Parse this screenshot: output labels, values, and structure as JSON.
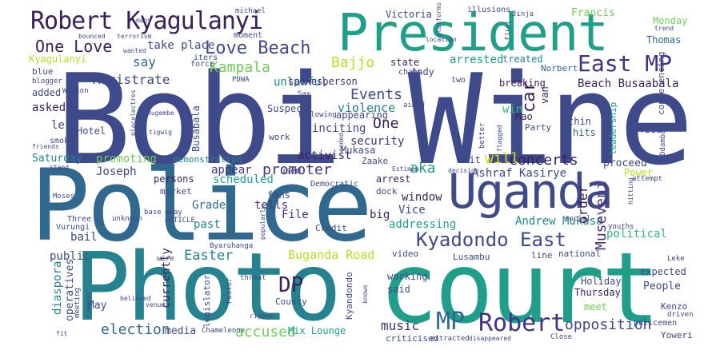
{
  "colors": {
    "background": "#ffffff",
    "palette": [
      "#3b1f59",
      "#44327e",
      "#3e4a89",
      "#31688e",
      "#26828e",
      "#1f9e89",
      "#35b779",
      "#6ece58",
      "#b5de2b",
      "#d8e219"
    ]
  },
  "words": [
    {
      "text": "Bobi Wine",
      "rank": 1
    },
    {
      "text": "Police",
      "rank": 2
    },
    {
      "text": "Photo",
      "rank": 3
    },
    {
      "text": "court",
      "rank": 4
    },
    {
      "text": "President",
      "rank": 5
    },
    {
      "text": "Uganda",
      "rank": 6
    },
    {
      "text": "Robert Kyagulanyi",
      "rank": 7
    },
    {
      "text": "Kyadondo East",
      "rank": 8
    },
    {
      "text": "East MP",
      "rank": 9
    },
    {
      "text": "Robert",
      "rank": 10
    },
    {
      "text": "MP",
      "rank": 11
    },
    {
      "text": "One Love",
      "rank": 12
    },
    {
      "text": "Love Beach",
      "rank": 13
    },
    {
      "text": "DP",
      "rank": 14
    },
    {
      "text": "Kampala",
      "rank": 15
    },
    {
      "text": "opposition",
      "rank": 16
    },
    {
      "text": "promoter",
      "rank": 17
    },
    {
      "text": "concerts",
      "rank": 18
    },
    {
      "text": "accused",
      "rank": 19
    },
    {
      "text": "election",
      "rank": 20
    },
    {
      "text": "Easter",
      "rank": 21
    },
    {
      "text": "Buganda Road",
      "rank": 22
    },
    {
      "text": "Museveni",
      "rank": 23
    },
    {
      "text": "Events",
      "rank": 24
    },
    {
      "text": "One",
      "rank": 25
    },
    {
      "text": "aka",
      "rank": 26
    },
    {
      "text": "Magistrate",
      "rank": 27
    },
    {
      "text": "music",
      "rank": 28
    },
    {
      "text": "Bajjo",
      "rank": 29
    },
    {
      "text": "car",
      "rank": 30
    },
    {
      "text": "will",
      "rank": 31
    },
    {
      "text": "order",
      "rank": 32
    },
    {
      "text": "violence",
      "rank": 33
    },
    {
      "text": "security",
      "rank": 34
    },
    {
      "text": "activist",
      "rank": 35
    },
    {
      "text": "Joseph",
      "rank": 36
    },
    {
      "text": "Beach Busaabala",
      "rank": 37
    },
    {
      "text": "Ashraf Kasirye",
      "rank": 38
    },
    {
      "text": "Andrew Mukasa",
      "rank": 39
    },
    {
      "text": "political",
      "rank": 40
    },
    {
      "text": "window",
      "rank": 41
    },
    {
      "text": "take place",
      "rank": 42
    },
    {
      "text": "say",
      "rank": 43
    },
    {
      "text": "arrested",
      "rank": 44
    },
    {
      "text": "inciting",
      "rank": 45
    },
    {
      "text": "Mukasa",
      "rank": 46
    },
    {
      "text": "unlawful",
      "rank": 47
    },
    {
      "text": "scheduled",
      "rank": 48
    },
    {
      "text": "appear",
      "rank": 49
    },
    {
      "text": "Vice",
      "rank": 50
    },
    {
      "text": "addressing",
      "rank": 51
    },
    {
      "text": "tells",
      "rank": 52
    },
    {
      "text": "big",
      "rank": 53
    },
    {
      "text": "File",
      "rank": 54
    },
    {
      "text": "Grade",
      "rank": 55
    },
    {
      "text": "past",
      "rank": 56
    },
    {
      "text": "promoting",
      "rank": 57
    },
    {
      "text": "currently",
      "rank": 58
    },
    {
      "text": "bail",
      "rank": 59
    },
    {
      "text": "public",
      "rank": 60
    },
    {
      "text": "diaspora",
      "rank": 61
    },
    {
      "text": "operatives",
      "rank": 62
    },
    {
      "text": "Kyagulanyi",
      "rank": 63
    },
    {
      "text": "left",
      "rank": 64
    },
    {
      "text": "asked",
      "rank": 65
    },
    {
      "text": "added",
      "rank": 66
    },
    {
      "text": "Saturday",
      "rank": 67
    },
    {
      "text": "Hotel",
      "rank": 68
    },
    {
      "text": "Victoria",
      "rank": 69
    },
    {
      "text": "Francis",
      "rank": 70
    },
    {
      "text": "Monday",
      "rank": 71
    },
    {
      "text": "Thomas",
      "rank": 72
    },
    {
      "text": "conferencing",
      "rank": 73
    },
    {
      "text": "treated",
      "rank": 74
    },
    {
      "text": "Norbert",
      "rank": 75
    },
    {
      "text": "Andy",
      "rank": 76
    },
    {
      "text": "state",
      "rank": 77
    },
    {
      "text": "van",
      "rank": 78
    },
    {
      "text": "Mao",
      "rank": 79
    },
    {
      "text": "win",
      "rank": 80
    },
    {
      "text": "thin",
      "rank": 81
    },
    {
      "text": "hits",
      "rank": 82
    },
    {
      "text": "defied",
      "rank": 83
    },
    {
      "text": "leadership",
      "rank": 84
    },
    {
      "text": "Party",
      "rank": 85
    },
    {
      "text": "breaking",
      "rank": 86
    },
    {
      "text": "spokesperson",
      "rank": 87
    },
    {
      "text": "Busabala",
      "rank": 88
    },
    {
      "text": "appearing",
      "rank": 89
    },
    {
      "text": "Suspect",
      "rank": 90
    },
    {
      "text": "work",
      "rank": 91
    },
    {
      "text": "demonstration",
      "rank": 92
    },
    {
      "text": "persons",
      "rank": 93
    },
    {
      "text": "proceed",
      "rank": 94
    },
    {
      "text": "Power",
      "rank": 95
    },
    {
      "text": "suit",
      "rank": 96
    },
    {
      "text": "arrest",
      "rank": 97
    },
    {
      "text": "dock",
      "rank": 98
    },
    {
      "text": "Zaake",
      "rank": 99
    },
    {
      "text": "fans",
      "rank": 100
    },
    {
      "text": "used",
      "rank": 101
    },
    {
      "text": "market",
      "rank": 102
    },
    {
      "text": "Credit",
      "rank": 103
    },
    {
      "text": "Holiday",
      "rank": 104
    },
    {
      "text": "Thursday",
      "rank": 105
    },
    {
      "text": "meet",
      "rank": 106
    },
    {
      "text": "People",
      "rank": 107
    },
    {
      "text": "expected",
      "rank": 108
    },
    {
      "text": "Kenzo",
      "rank": 109
    },
    {
      "text": "Yoweri",
      "rank": 110
    },
    {
      "text": "May",
      "rank": 111
    },
    {
      "text": "media",
      "rank": 112
    },
    {
      "text": "legislator",
      "rank": 113
    },
    {
      "text": "Mix Lounge",
      "rank": 114
    },
    {
      "text": "County",
      "rank": 115
    },
    {
      "text": "said",
      "rank": 116
    },
    {
      "text": "working",
      "rank": 117
    },
    {
      "text": "Kyandondo",
      "rank": 118
    },
    {
      "text": "video",
      "rank": 119
    },
    {
      "text": "criticised",
      "rank": 120
    },
    {
      "text": "Lusambu",
      "rank": 121
    },
    {
      "text": "line",
      "rank": 122
    },
    {
      "text": "national",
      "rank": 123
    },
    {
      "text": "Democratic",
      "rank": 124
    },
    {
      "text": "Three",
      "rank": 125
    },
    {
      "text": "Vurungi",
      "rank": 126
    },
    {
      "text": "Byaruhanga",
      "rank": 127
    },
    {
      "text": "policemen",
      "rank": 128
    },
    {
      "text": "Chameleone",
      "rank": 129
    },
    {
      "text": "meeting",
      "rank": 130
    },
    {
      "text": "Mitambo",
      "rank": 131
    },
    {
      "text": "Ddamba",
      "rank": 132
    },
    {
      "text": "fit",
      "rank": 133
    },
    {
      "text": "courier",
      "rank": 134
    },
    {
      "text": "believed",
      "rank": 135
    },
    {
      "text": "venue",
      "rank": 136
    },
    {
      "text": "rigged",
      "rank": 137
    },
    {
      "text": "extracted",
      "rank": 138
    },
    {
      "text": "disappeared",
      "rank": 139
    },
    {
      "text": "Close",
      "rank": 140
    },
    {
      "text": "driven",
      "rank": 141
    },
    {
      "text": "Leke",
      "rank": 142
    },
    {
      "text": "youths",
      "rank": 143
    },
    {
      "text": "Kasirye",
      "rank": 144
    },
    {
      "text": "social",
      "rank": 145
    },
    {
      "text": "attempt",
      "rank": 146
    },
    {
      "text": "Ecstasy",
      "rank": 147
    },
    {
      "text": "knows",
      "rank": 148
    },
    {
      "text": "Pastor",
      "rank": 149
    },
    {
      "text": "threat",
      "rank": 150
    },
    {
      "text": "popularly",
      "rank": 151
    },
    {
      "text": "Moses",
      "rank": 152
    },
    {
      "text": "known",
      "rank": 153
    },
    {
      "text": "unknown",
      "rank": 154
    },
    {
      "text": "base",
      "rank": 155
    },
    {
      "text": "away",
      "rank": 156
    },
    {
      "text": "ARTICLE",
      "rank": 157
    },
    {
      "text": "wire",
      "rank": 158
    },
    {
      "text": "Ssentamu",
      "rank": 159
    },
    {
      "text": "Wilson",
      "rank": 160
    },
    {
      "text": "blogger",
      "rank": 161
    },
    {
      "text": "blue",
      "rank": 162
    },
    {
      "text": "many",
      "rank": 163
    },
    {
      "text": "michael",
      "rank": 164
    },
    {
      "text": "illusions",
      "rank": 165
    },
    {
      "text": "Jinja",
      "rank": 166
    },
    {
      "text": "bounced",
      "rank": 167
    },
    {
      "text": "terrorism",
      "rank": 168
    },
    {
      "text": "moment",
      "rank": 169
    },
    {
      "text": "platforms",
      "rank": 170
    },
    {
      "text": "First",
      "rank": 171
    },
    {
      "text": "Lose",
      "rank": 172
    },
    {
      "text": "wanted",
      "rank": 173
    },
    {
      "text": "force",
      "rank": 174
    },
    {
      "text": "iters",
      "rank": 175
    },
    {
      "text": "chaos",
      "rank": 176
    },
    {
      "text": "two",
      "rank": 177
    },
    {
      "text": "PDWA",
      "rank": 178
    },
    {
      "text": "Sax",
      "rank": 179
    },
    {
      "text": "aimed",
      "rank": 180
    },
    {
      "text": "Bugembe",
      "rank": 181
    },
    {
      "text": "following",
      "rank": 182
    },
    {
      "text": "tigwig",
      "rank": 183
    },
    {
      "text": "placelectres",
      "rank": 184
    },
    {
      "text": "friends",
      "rank": 185
    },
    {
      "text": "smoke",
      "rank": 186
    },
    {
      "text": "stand",
      "rank": 187
    },
    {
      "text": "ended",
      "rank": 188
    },
    {
      "text": "decision",
      "rank": 189
    },
    {
      "text": "Estimba",
      "rank": 190
    },
    {
      "text": "flagged",
      "rank": 191
    },
    {
      "text": "better",
      "rank": 192
    },
    {
      "text": "hitting",
      "rank": 193
    },
    {
      "text": "clearing",
      "rank": 194
    },
    {
      "text": "moning",
      "rank": 195
    },
    {
      "text": "Bbakanga",
      "rank": 196
    },
    {
      "text": "Ddamba",
      "rank": 197
    },
    {
      "text": "trend",
      "rank": 198
    },
    {
      "text": "location",
      "rank": 199
    }
  ]
}
